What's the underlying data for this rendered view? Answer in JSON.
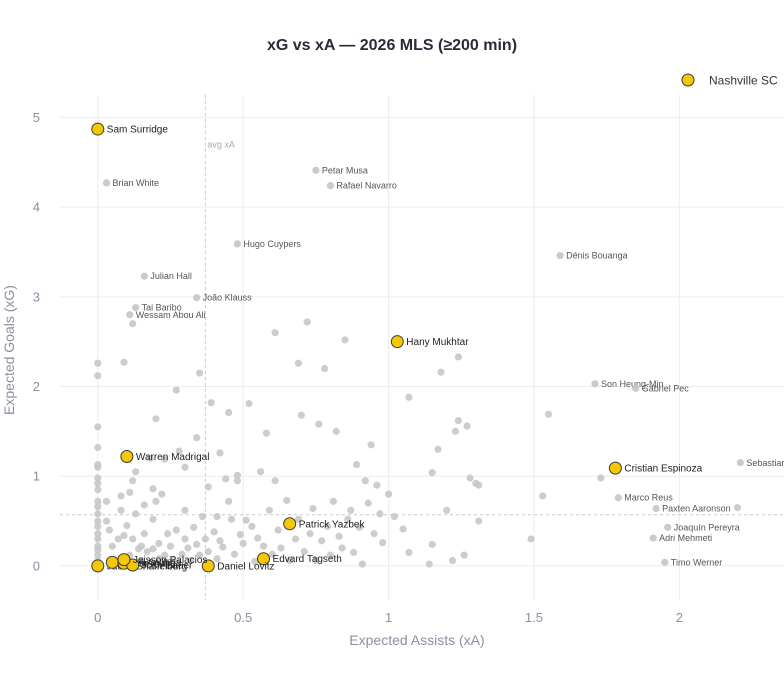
{
  "chart_data": {
    "type": "scatter",
    "title": "xG vs xA — 2026 MLS (≥200 min)",
    "xlabel": "Expected Assists (xA)",
    "ylabel": "Expected Goals (xG)",
    "xlim": [
      -0.13,
      2.36
    ],
    "ylim": [
      -0.38,
      5.25
    ],
    "x_ticks": [
      0,
      0.5,
      1,
      1.5,
      2
    ],
    "x_tick_labels": [
      "0",
      "0.5",
      "1",
      "1.5",
      "2"
    ],
    "y_ticks": [
      0,
      1,
      2,
      3,
      4,
      5
    ],
    "y_tick_labels": [
      "0",
      "1",
      "2",
      "3",
      "4",
      "5"
    ],
    "grid": true,
    "avg_line": {
      "label": "avg xA",
      "x": 0.37,
      "y_avg": 0.57
    },
    "legend": {
      "position": "top-right",
      "entries": [
        {
          "name": "Nashville SC",
          "color": "#f5c800"
        }
      ]
    },
    "colors": {
      "highlight": "#f5c800",
      "highlight_edge": "#3a3a3a",
      "other": "#c4c4c4"
    },
    "highlight_series": {
      "name": "Nashville SC",
      "points": [
        {
          "label": "Sam Surridge",
          "x": 0.0,
          "y": 4.87
        },
        {
          "label": "Hany Mukhtar",
          "x": 1.03,
          "y": 2.5
        },
        {
          "label": "Warren Madrigal",
          "x": 0.1,
          "y": 1.22
        },
        {
          "label": "Cristian Espinoza",
          "x": 1.78,
          "y": 1.09
        },
        {
          "label": "Patrick Yazbek",
          "x": 0.66,
          "y": 0.47
        },
        {
          "label": "Edvard Tagseth",
          "x": 0.57,
          "y": 0.08
        },
        {
          "label": "Daniel Lovitz",
          "x": 0.38,
          "y": 0.0
        },
        {
          "label": "Jacob Shaffelburg",
          "x": 0.0,
          "y": 0.0
        },
        {
          "label": "Brian Anunga",
          "x": 0.05,
          "y": 0.04
        },
        {
          "label": "Joe Willis",
          "x": 0.09,
          "y": 0.03
        },
        {
          "label": "Josh Bauer",
          "x": 0.12,
          "y": 0.01
        },
        {
          "label": "Jeisson Palacios",
          "x": 0.09,
          "y": 0.07
        }
      ]
    },
    "labeled_others": [
      {
        "label": "Brian White",
        "x": 0.03,
        "y": 4.27
      },
      {
        "label": "Petar Musa",
        "x": 0.75,
        "y": 4.41
      },
      {
        "label": "Rafael Navarro",
        "x": 0.8,
        "y": 4.24
      },
      {
        "label": "Hugo Cuypers",
        "x": 0.48,
        "y": 3.59
      },
      {
        "label": "Dénis Bouanga",
        "x": 1.59,
        "y": 3.46
      },
      {
        "label": "Julian Hall",
        "x": 0.16,
        "y": 3.23
      },
      {
        "label": "João Klauss",
        "x": 0.34,
        "y": 2.99
      },
      {
        "label": "Tai Baribo",
        "x": 0.13,
        "y": 2.88
      },
      {
        "label": "Wessam Abou Ali",
        "x": 0.11,
        "y": 2.8
      },
      {
        "label": "Son Heung-Min",
        "x": 1.71,
        "y": 2.03
      },
      {
        "label": "Gabriel Pec",
        "x": 1.85,
        "y": 1.98
      },
      {
        "label": "Sebastian",
        "x": 2.21,
        "y": 1.15
      },
      {
        "label": "Marco Reus",
        "x": 1.79,
        "y": 0.76
      },
      {
        "label": "Paxten Aaronson",
        "x": 1.92,
        "y": 0.64
      },
      {
        "label": "Joaquín Pereyra",
        "x": 1.96,
        "y": 0.43
      },
      {
        "label": "Adri Mehmeti",
        "x": 1.91,
        "y": 0.31
      },
      {
        "label": "Timo Werner",
        "x": 1.95,
        "y": 0.04
      }
    ],
    "other_points": [
      [
        0.0,
        2.26
      ],
      [
        0.0,
        2.12
      ],
      [
        0.0,
        1.55
      ],
      [
        0.0,
        1.32
      ],
      [
        0.0,
        1.13
      ],
      [
        0.0,
        1.1
      ],
      [
        0.0,
        0.98
      ],
      [
        0.0,
        0.92
      ],
      [
        0.0,
        0.85
      ],
      [
        0.0,
        0.72
      ],
      [
        0.0,
        0.66
      ],
      [
        0.0,
        0.58
      ],
      [
        0.0,
        0.5
      ],
      [
        0.0,
        0.44
      ],
      [
        0.0,
        0.36
      ],
      [
        0.0,
        0.3
      ],
      [
        0.0,
        0.22
      ],
      [
        0.0,
        0.18
      ],
      [
        0.0,
        0.12
      ],
      [
        0.0,
        0.06
      ],
      [
        0.03,
        0.72
      ],
      [
        0.03,
        0.5
      ],
      [
        0.04,
        0.4
      ],
      [
        0.05,
        0.22
      ],
      [
        0.06,
        0.05
      ],
      [
        0.07,
        0.3
      ],
      [
        0.08,
        0.62
      ],
      [
        0.08,
        0.78
      ],
      [
        0.09,
        0.34
      ],
      [
        0.09,
        2.27
      ],
      [
        0.1,
        0.45
      ],
      [
        0.11,
        0.12
      ],
      [
        0.11,
        0.82
      ],
      [
        0.12,
        0.95
      ],
      [
        0.12,
        0.3
      ],
      [
        0.12,
        2.7
      ],
      [
        0.13,
        1.05
      ],
      [
        0.13,
        0.58
      ],
      [
        0.14,
        0.19
      ],
      [
        0.15,
        0.06
      ],
      [
        0.15,
        0.22
      ],
      [
        0.16,
        0.36
      ],
      [
        0.16,
        0.68
      ],
      [
        0.17,
        0.16
      ],
      [
        0.18,
        1.2
      ],
      [
        0.19,
        0.86
      ],
      [
        0.19,
        0.52
      ],
      [
        0.19,
        0.19
      ],
      [
        0.2,
        1.64
      ],
      [
        0.2,
        0.72
      ],
      [
        0.21,
        0.25
      ],
      [
        0.21,
        0.08
      ],
      [
        0.22,
        0.8
      ],
      [
        0.23,
        0.12
      ],
      [
        0.23,
        1.19
      ],
      [
        0.24,
        0.36
      ],
      [
        0.25,
        0.22
      ],
      [
        0.26,
        0.06
      ],
      [
        0.27,
        1.96
      ],
      [
        0.27,
        0.4
      ],
      [
        0.28,
        1.28
      ],
      [
        0.29,
        0.13
      ],
      [
        0.3,
        0.3
      ],
      [
        0.3,
        1.1
      ],
      [
        0.3,
        0.62
      ],
      [
        0.31,
        0.2
      ],
      [
        0.32,
        0.06
      ],
      [
        0.33,
        0.43
      ],
      [
        0.34,
        0.24
      ],
      [
        0.34,
        1.43
      ],
      [
        0.35,
        2.15
      ],
      [
        0.35,
        0.12
      ],
      [
        0.36,
        0.55
      ],
      [
        0.37,
        0.3
      ],
      [
        0.38,
        0.88
      ],
      [
        0.38,
        0.16
      ],
      [
        0.39,
        1.82
      ],
      [
        0.4,
        0.38
      ],
      [
        0.41,
        0.55
      ],
      [
        0.41,
        0.08
      ],
      [
        0.42,
        1.26
      ],
      [
        0.42,
        0.28
      ],
      [
        0.43,
        0.21
      ],
      [
        0.44,
        0.97
      ],
      [
        0.45,
        0.72
      ],
      [
        0.45,
        1.71
      ],
      [
        0.46,
        0.52
      ],
      [
        0.47,
        0.13
      ],
      [
        0.48,
        0.95
      ],
      [
        0.48,
        1.01
      ],
      [
        0.49,
        0.35
      ],
      [
        0.5,
        0.25
      ],
      [
        0.51,
        0.51
      ],
      [
        0.52,
        1.81
      ],
      [
        0.53,
        0.44
      ],
      [
        0.54,
        0.05
      ],
      [
        0.55,
        0.31
      ],
      [
        0.56,
        1.05
      ],
      [
        0.57,
        0.22
      ],
      [
        0.58,
        1.48
      ],
      [
        0.59,
        0.62
      ],
      [
        0.6,
        0.13
      ],
      [
        0.61,
        0.95
      ],
      [
        0.61,
        2.6
      ],
      [
        0.62,
        0.4
      ],
      [
        0.63,
        0.2
      ],
      [
        0.65,
        0.73
      ],
      [
        0.66,
        0.06
      ],
      [
        0.68,
        0.3
      ],
      [
        0.69,
        0.52
      ],
      [
        0.69,
        2.26
      ],
      [
        0.7,
        1.68
      ],
      [
        0.71,
        0.16
      ],
      [
        0.72,
        2.72
      ],
      [
        0.73,
        0.36
      ],
      [
        0.74,
        0.64
      ],
      [
        0.75,
        0.06
      ],
      [
        0.76,
        1.58
      ],
      [
        0.77,
        0.28
      ],
      [
        0.78,
        2.2
      ],
      [
        0.79,
        0.44
      ],
      [
        0.8,
        0.12
      ],
      [
        0.81,
        0.72
      ],
      [
        0.82,
        1.5
      ],
      [
        0.83,
        0.33
      ],
      [
        0.84,
        0.2
      ],
      [
        0.85,
        2.52
      ],
      [
        0.86,
        0.52
      ],
      [
        0.87,
        0.62
      ],
      [
        0.88,
        0.15
      ],
      [
        0.89,
        1.13
      ],
      [
        0.9,
        0.43
      ],
      [
        0.91,
        0.02
      ],
      [
        0.92,
        0.95
      ],
      [
        0.93,
        0.7
      ],
      [
        0.94,
        1.35
      ],
      [
        0.95,
        0.36
      ],
      [
        0.96,
        0.9
      ],
      [
        0.97,
        0.58
      ],
      [
        0.98,
        0.26
      ],
      [
        1.0,
        0.8
      ],
      [
        1.02,
        0.55
      ],
      [
        1.05,
        0.41
      ],
      [
        1.07,
        0.15
      ],
      [
        1.07,
        1.88
      ],
      [
        1.14,
        0.02
      ],
      [
        1.15,
        0.24
      ],
      [
        1.15,
        1.04
      ],
      [
        1.17,
        1.3
      ],
      [
        1.18,
        2.16
      ],
      [
        1.2,
        0.62
      ],
      [
        1.22,
        0.06
      ],
      [
        1.23,
        1.5
      ],
      [
        1.24,
        1.62
      ],
      [
        1.24,
        2.33
      ],
      [
        1.26,
        0.12
      ],
      [
        1.27,
        1.56
      ],
      [
        1.28,
        0.98
      ],
      [
        1.3,
        0.92
      ],
      [
        1.31,
        0.5
      ],
      [
        1.31,
        0.9
      ],
      [
        1.49,
        0.3
      ],
      [
        1.53,
        0.78
      ],
      [
        1.55,
        1.69
      ],
      [
        1.73,
        0.98
      ],
      [
        2.2,
        0.65
      ]
    ]
  }
}
